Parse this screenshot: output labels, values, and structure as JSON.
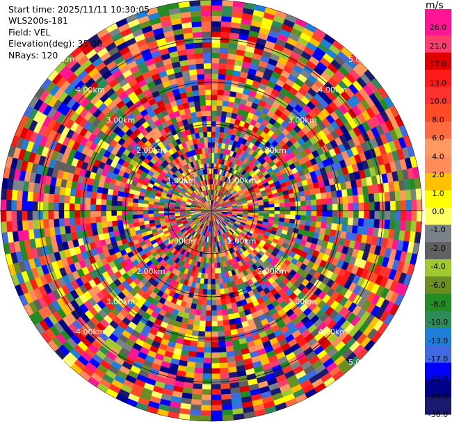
{
  "info": {
    "start_time": "Start time: 2025/11/11 10:30:05",
    "station": "WLS200s-181",
    "field": "Field: VEL",
    "elevation": "Elevation(deg): 35.00",
    "nrays": "NRays: 120"
  },
  "chart_data": {
    "type": "heatmap",
    "projection": "polar",
    "field": "VEL",
    "nrays": 120,
    "range_ring_labels": [
      "1.00km",
      "2.00km",
      "3.00km",
      "4.00km",
      "5.00km"
    ],
    "colorbar": {
      "unit": "m/s",
      "ticks": [
        "26.0",
        "21.0",
        "17.0",
        "13.0",
        "10.0",
        "8.0",
        "6.0",
        "4.0",
        "2.0",
        "1.0",
        "0.0",
        "-1.0",
        "-2.0",
        "-4.0",
        "-6.0",
        "-8.0",
        "-10.0",
        "-13.0",
        "-17.0",
        "-21.0",
        "-26.0",
        "-30.0"
      ],
      "colors": [
        "#ff1493",
        "#ff3c6e",
        "#e00000",
        "#ff1a1a",
        "#ff3030",
        "#ff4a28",
        "#ff6a40",
        "#ff9a60",
        "#ff8c5a",
        "#ffc000",
        "#ffff00",
        "#ffff66",
        "#7a8288",
        "#606060",
        "#a0c830",
        "#6b8e23",
        "#228b22",
        "#2e8b57",
        "#1e7fd8",
        "#4169e1",
        "#0000ff",
        "#00008b",
        "#191970"
      ]
    }
  }
}
